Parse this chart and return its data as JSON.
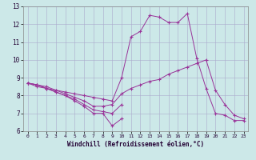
{
  "title": "",
  "xlabel": "Windchill (Refroidissement éolien,°C)",
  "ylabel": "",
  "background_color": "#cce8e8",
  "line_color": "#993399",
  "xlim": [
    -0.5,
    23.5
  ],
  "ylim": [
    6,
    13
  ],
  "xticks": [
    0,
    1,
    2,
    3,
    4,
    5,
    6,
    7,
    8,
    9,
    10,
    11,
    12,
    13,
    14,
    15,
    16,
    17,
    18,
    19,
    20,
    21,
    22,
    23
  ],
  "yticks": [
    6,
    7,
    8,
    9,
    10,
    11,
    12,
    13
  ],
  "grid_color": "#aaaacc",
  "series": [
    {
      "x": [
        0,
        1,
        2,
        3,
        4,
        5,
        6,
        7,
        8,
        9,
        10,
        11,
        12,
        13,
        14,
        15,
        16,
        17,
        18,
        19,
        20,
        21,
        22,
        23
      ],
      "y": [
        8.7,
        8.6,
        8.4,
        8.3,
        8.2,
        8.1,
        8.0,
        7.9,
        7.8,
        7.7,
        9.0,
        11.3,
        11.6,
        12.5,
        12.4,
        12.1,
        12.1,
        12.6,
        10.1,
        8.4,
        7.0,
        6.9,
        6.6,
        6.6
      ]
    },
    {
      "x": [
        0,
        1,
        2,
        3,
        4,
        5,
        6,
        7,
        8,
        9,
        10
      ],
      "y": [
        8.7,
        8.6,
        8.4,
        8.2,
        8.0,
        7.7,
        7.4,
        7.0,
        7.0,
        6.3,
        6.7
      ]
    },
    {
      "x": [
        0,
        1,
        2,
        3,
        4,
        5,
        6,
        7,
        8,
        9,
        10,
        11,
        12,
        13,
        14,
        15,
        16,
        17,
        18,
        19,
        20,
        21,
        22,
        23
      ],
      "y": [
        8.7,
        8.6,
        8.5,
        8.3,
        8.1,
        7.9,
        7.7,
        7.4,
        7.4,
        7.5,
        8.1,
        8.4,
        8.6,
        8.8,
        8.9,
        9.2,
        9.4,
        9.6,
        9.8,
        10.0,
        8.3,
        7.5,
        6.9,
        6.7
      ]
    },
    {
      "x": [
        0,
        1,
        2,
        3,
        4,
        5,
        6,
        7,
        8,
        9,
        10
      ],
      "y": [
        8.7,
        8.5,
        8.4,
        8.2,
        8.0,
        7.8,
        7.5,
        7.2,
        7.1,
        7.0,
        7.5
      ]
    }
  ]
}
